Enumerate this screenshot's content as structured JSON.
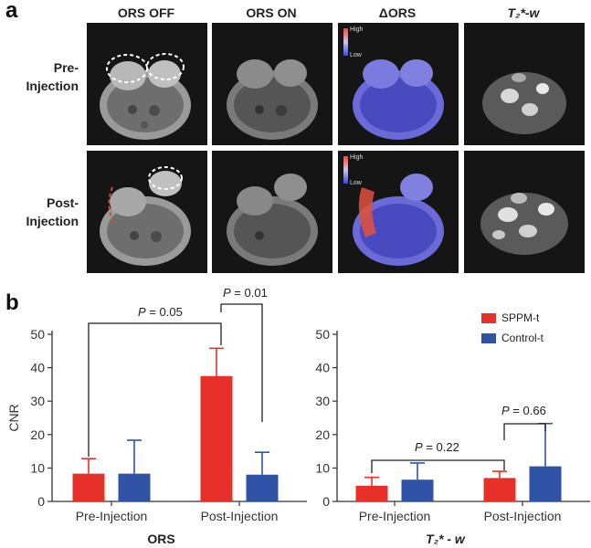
{
  "panel_a": {
    "letter": "a",
    "column_headers": [
      "ORS OFF",
      "ORS ON",
      "ΔORS",
      "T₂*-w"
    ],
    "row_labels": [
      {
        "line1": "Pre-",
        "line2": "Injection"
      },
      {
        "line1": "Post-",
        "line2": "Injection"
      }
    ],
    "colorbar": {
      "high": "High",
      "low": "Low"
    }
  },
  "panel_b": {
    "letter": "b",
    "legend": [
      {
        "name": "SPPM-t",
        "color": "#e8302a"
      },
      {
        "name": "Control-t",
        "color": "#3053a8"
      }
    ],
    "significance": {
      "ors_pre_vs_post": "= 0.05",
      "ors_post": "= 0.01",
      "t2_pre_vs_post": "= 0.22",
      "t2_post": "= 0.66",
      "symbol": "P"
    }
  },
  "chart_data": [
    {
      "type": "bar",
      "title": "",
      "xlabel": "ORS",
      "ylabel": "CNR",
      "ylim": [
        0,
        50
      ],
      "yticks": [
        0,
        10,
        20,
        30,
        40,
        50
      ],
      "categories": [
        "Pre-Injection",
        "Post-Injection"
      ],
      "series": [
        {
          "name": "SPPM-t",
          "color": "#e8302a",
          "values": [
            8.3,
            37.5
          ],
          "errors": [
            4.5,
            8.3
          ]
        },
        {
          "name": "Control-t",
          "color": "#3053a8",
          "values": [
            8.3,
            8.0
          ],
          "errors": [
            10.0,
            6.7
          ]
        }
      ]
    },
    {
      "type": "bar",
      "title": "",
      "xlabel": "T₂* - w",
      "ylabel": "",
      "ylim": [
        0,
        50
      ],
      "yticks": [
        0,
        10,
        20,
        30,
        40,
        50
      ],
      "categories": [
        "Pre-Injection",
        "Post-Injection"
      ],
      "series": [
        {
          "name": "SPPM-t",
          "color": "#e8302a",
          "values": [
            4.7,
            7.0
          ],
          "errors": [
            2.5,
            2.0
          ]
        },
        {
          "name": "Control-t",
          "color": "#3053a8",
          "values": [
            6.5,
            10.5
          ],
          "errors": [
            5.0,
            12.8
          ]
        }
      ]
    }
  ]
}
